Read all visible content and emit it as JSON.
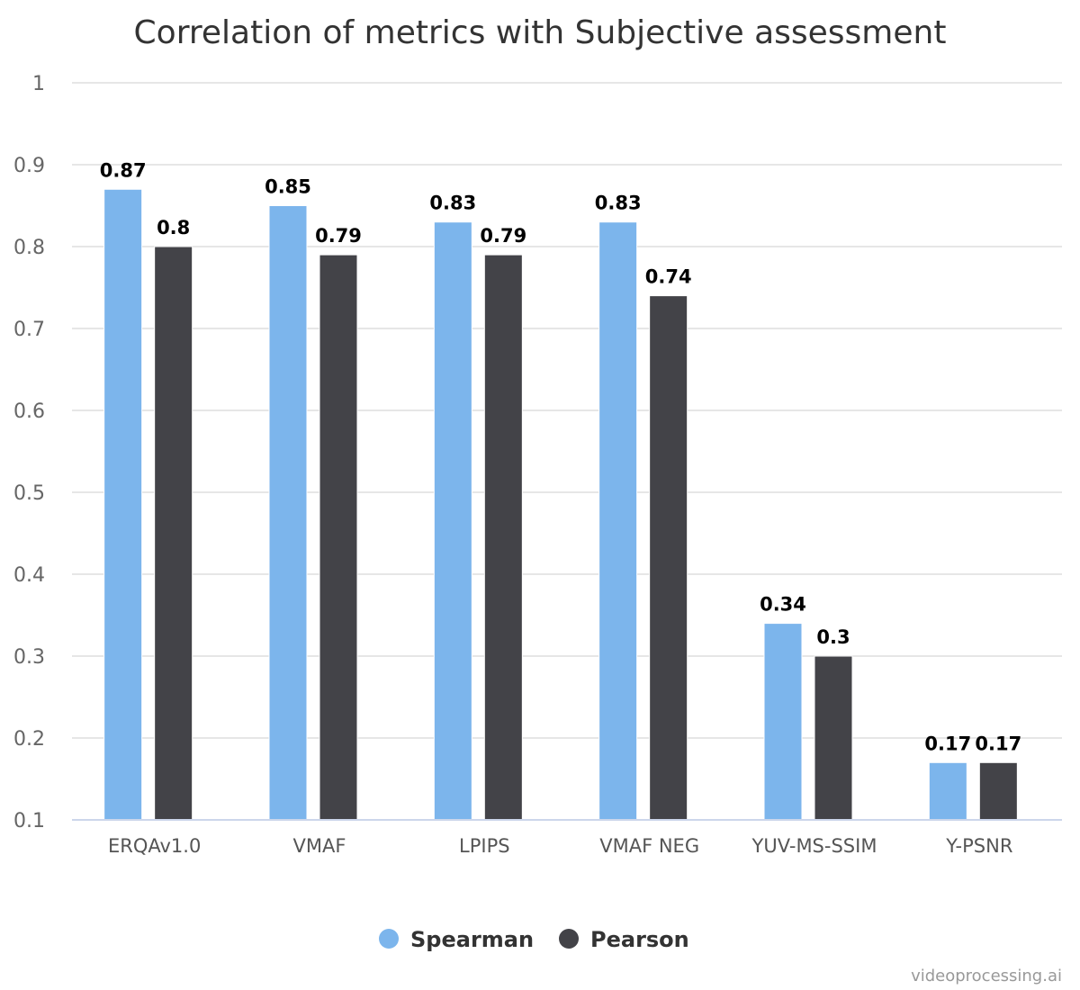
{
  "chart_data": {
    "type": "bar",
    "title": "Correlation of metrics with Subjective assessment",
    "categories": [
      "ERQAv1.0",
      "VMAF",
      "LPIPS",
      "VMAF NEG",
      "YUV-MS-SSIM",
      "Y-PSNR"
    ],
    "series": [
      {
        "name": "Spearman",
        "color": "#7cb5ec",
        "values": [
          0.87,
          0.85,
          0.83,
          0.83,
          0.34,
          0.17
        ]
      },
      {
        "name": "Pearson",
        "color": "#434348",
        "values": [
          0.8,
          0.79,
          0.79,
          0.74,
          0.3,
          0.17
        ]
      }
    ],
    "ylim": [
      0.1,
      1
    ],
    "yticks": [
      "0.1",
      "0.2",
      "0.3",
      "0.4",
      "0.5",
      "0.6",
      "0.7",
      "0.8",
      "0.9",
      "1"
    ],
    "grid": true,
    "data_labels": true,
    "legend_position": "bottom-center"
  },
  "credits": "videoprocessing.ai"
}
